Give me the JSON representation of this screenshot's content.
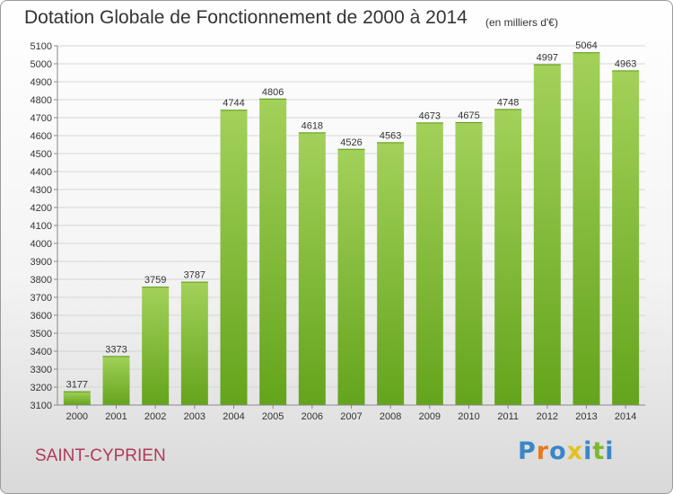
{
  "header": {
    "title": "Dotation Globale de Fonctionnement de 2000 à 2014",
    "unit": "(en milliers d'€)"
  },
  "footer": {
    "commune": "SAINT-CYPRIEN",
    "logo_letters": [
      "P",
      "r",
      "o",
      "x",
      "i",
      "t",
      "i"
    ],
    "logo_colors": [
      "#3a86c8",
      "#e67a1e",
      "#3a86c8",
      "#e2c21c",
      "#3a86c8",
      "#7cb82f",
      "#3a86c8"
    ]
  },
  "chart_data": {
    "type": "bar",
    "title": "Dotation Globale de Fonctionnement de 2000 à 2014",
    "xlabel": "",
    "ylabel": "",
    "categories": [
      "2000",
      "2001",
      "2002",
      "2003",
      "2004",
      "2005",
      "2006",
      "2007",
      "2008",
      "2009",
      "2010",
      "2011",
      "2012",
      "2013",
      "2014"
    ],
    "values": [
      3177,
      3373,
      3759,
      3787,
      4744,
      4806,
      4618,
      4526,
      4563,
      4673,
      4675,
      4748,
      4997,
      5064,
      4963
    ],
    "ylim": [
      3100,
      5100
    ],
    "ytick_step": 100,
    "grid": true,
    "bar_color_light": "#a3d15a",
    "bar_color_dark": "#64a41c"
  }
}
